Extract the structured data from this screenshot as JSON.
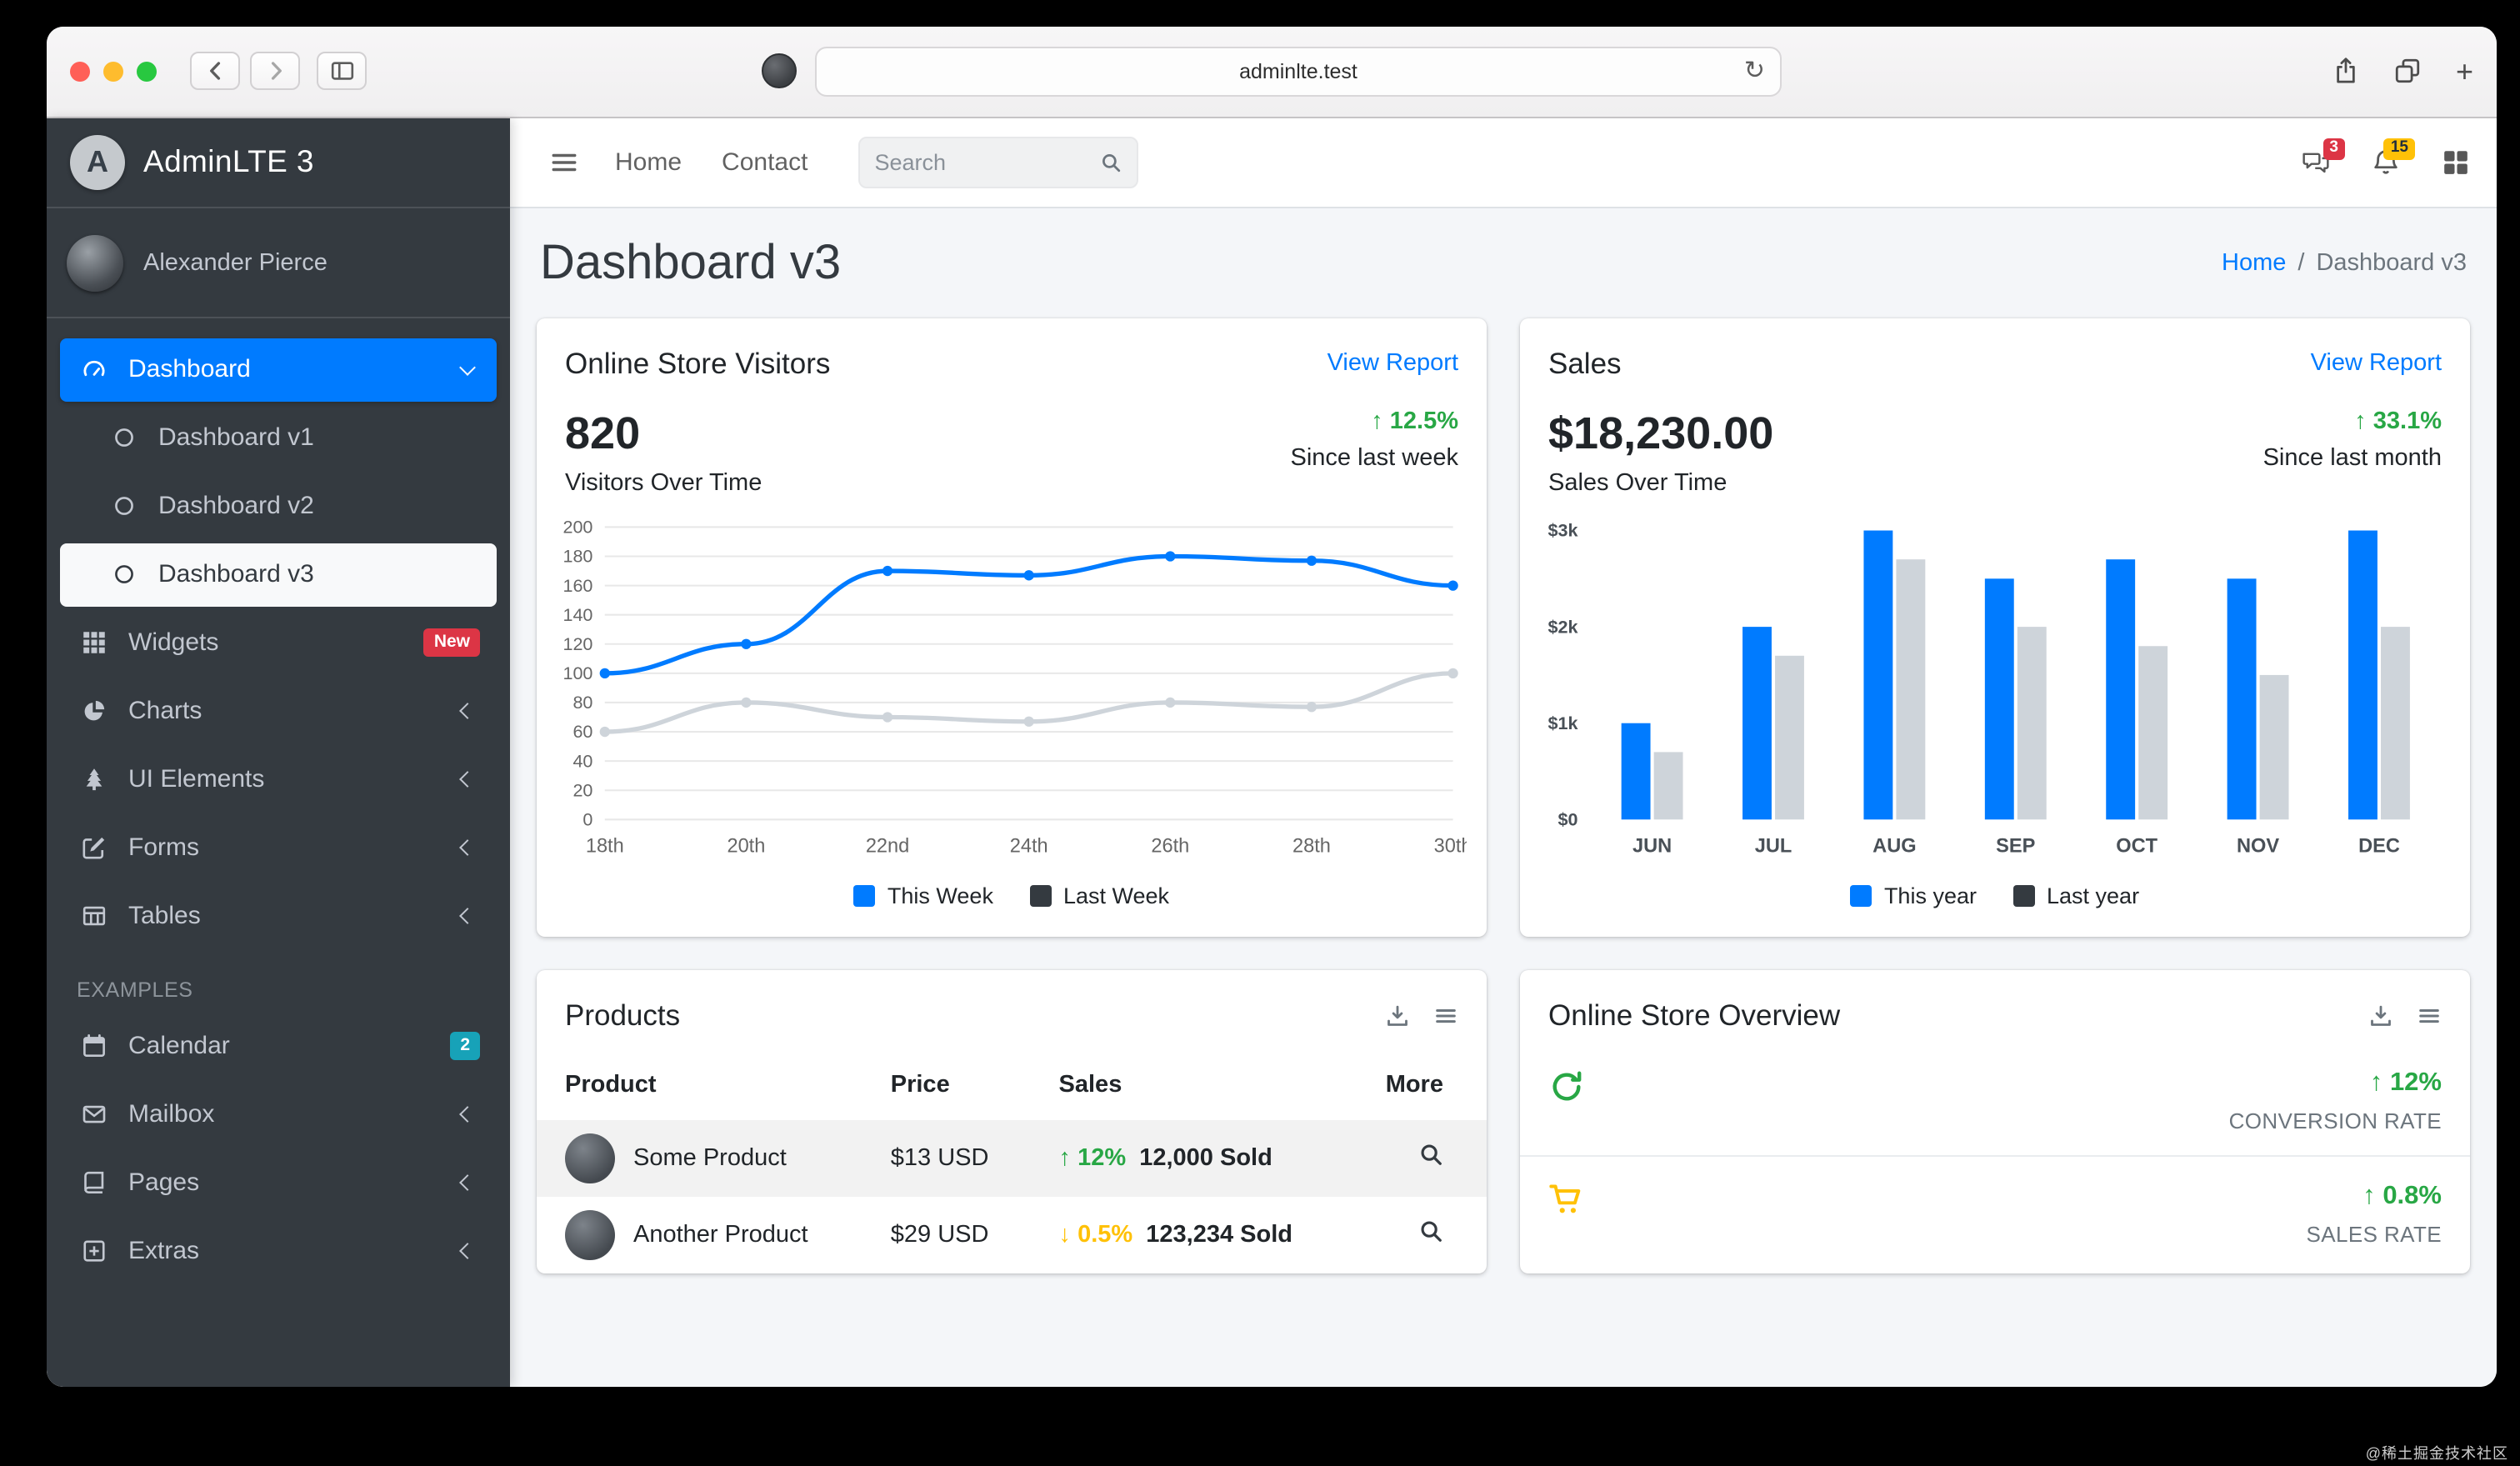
{
  "theme": {
    "primary": "#007bff",
    "success": "#28a745",
    "danger": "#dc3545",
    "warning": "#ffc107",
    "info": "#17a2b8",
    "sidebar_bg": "#343a40",
    "body_bg": "#f4f6f9"
  },
  "browser": {
    "url": "adminlte.test"
  },
  "watermark": "@稀土掘金技术社区",
  "brand": {
    "title": "AdminLTE 3",
    "logo_letter": "A"
  },
  "user": {
    "name": "Alexander Pierce"
  },
  "sidebar": {
    "items": [
      {
        "label": "Dashboard"
      },
      {
        "label": "Dashboard v1"
      },
      {
        "label": "Dashboard v2"
      },
      {
        "label": "Dashboard v3"
      },
      {
        "label": "Widgets",
        "badge": "New"
      },
      {
        "label": "Charts"
      },
      {
        "label": "UI Elements"
      },
      {
        "label": "Forms"
      },
      {
        "label": "Tables"
      },
      {
        "label": "EXAMPLES"
      },
      {
        "label": "Calendar",
        "badge": "2"
      },
      {
        "label": "Mailbox"
      },
      {
        "label": "Pages"
      },
      {
        "label": "Extras"
      }
    ]
  },
  "navbar": {
    "links": [
      {
        "label": "Home"
      },
      {
        "label": "Contact"
      }
    ],
    "search_placeholder": "Search",
    "messages_badge": "3",
    "notifications_badge": "15"
  },
  "page": {
    "title": "Dashboard v3",
    "breadcrumb": {
      "home": "Home",
      "separator": "/",
      "current": "Dashboard v3"
    }
  },
  "visitors_card": {
    "title": "Online Store Visitors",
    "action": "View Report",
    "value": "820",
    "value_caption": "Visitors Over Time",
    "delta_arrow": "↑",
    "delta": "12.5%",
    "delta_caption": "Since last week"
  },
  "sales_card": {
    "title": "Sales",
    "action": "View Report",
    "value": "$18,230.00",
    "value_caption": "Sales Over Time",
    "delta_arrow": "↑",
    "delta": "33.1%",
    "delta_caption": "Since last month"
  },
  "chart_data": [
    {
      "type": "line",
      "title": "Visitors Over Time",
      "x": [
        "18th",
        "20th",
        "22nd",
        "24th",
        "26th",
        "28th",
        "30th"
      ],
      "series": [
        {
          "name": "This Week",
          "color": "#007bff",
          "values": [
            100,
            120,
            170,
            167,
            180,
            177,
            160
          ]
        },
        {
          "name": "Last Week",
          "color": "#ced4da",
          "values": [
            60,
            80,
            70,
            67,
            80,
            77,
            100
          ]
        }
      ],
      "ylim": [
        0,
        200
      ],
      "ytick_step": 20,
      "grid": true,
      "legend_position": "bottom",
      "legend": [
        {
          "label": "This Week",
          "color": "#007bff"
        },
        {
          "label": "Last Week",
          "color": "#343a40"
        }
      ]
    },
    {
      "type": "bar",
      "title": "Sales Over Time",
      "categories": [
        "JUN",
        "JUL",
        "AUG",
        "SEP",
        "OCT",
        "NOV",
        "DEC"
      ],
      "series": [
        {
          "name": "This year",
          "color": "#007bff",
          "values": [
            1000,
            2000,
            3000,
            2500,
            2700,
            2500,
            3000
          ]
        },
        {
          "name": "Last year",
          "color": "#ced4da",
          "values": [
            700,
            1700,
            2700,
            2000,
            1800,
            1500,
            2000
          ]
        }
      ],
      "ylim": [
        0,
        3000
      ],
      "ytick_labels": [
        "$0",
        "$1k",
        "$2k",
        "$3k"
      ],
      "grid": false,
      "legend_position": "bottom",
      "legend": [
        {
          "label": "This year",
          "color": "#007bff"
        },
        {
          "label": "Last year",
          "color": "#343a40"
        }
      ]
    }
  ],
  "products_card": {
    "title": "Products",
    "columns": [
      "Product",
      "Price",
      "Sales",
      "More"
    ],
    "rows": [
      {
        "name": "Some Product",
        "price": "$13 USD",
        "delta_arrow": "↑",
        "delta": "12%",
        "sold": "12,000 Sold"
      },
      {
        "name": "Another Product",
        "price": "$29 USD",
        "delta_arrow": "↓",
        "delta": "0.5%",
        "sold": "123,234 Sold"
      }
    ]
  },
  "overview_card": {
    "title": "Online Store Overview",
    "rows": [
      {
        "delta_arrow": "↑",
        "delta": "12%",
        "label": "CONVERSION RATE"
      },
      {
        "delta_arrow": "↑",
        "delta": "0.8%",
        "label": "SALES RATE"
      }
    ]
  }
}
